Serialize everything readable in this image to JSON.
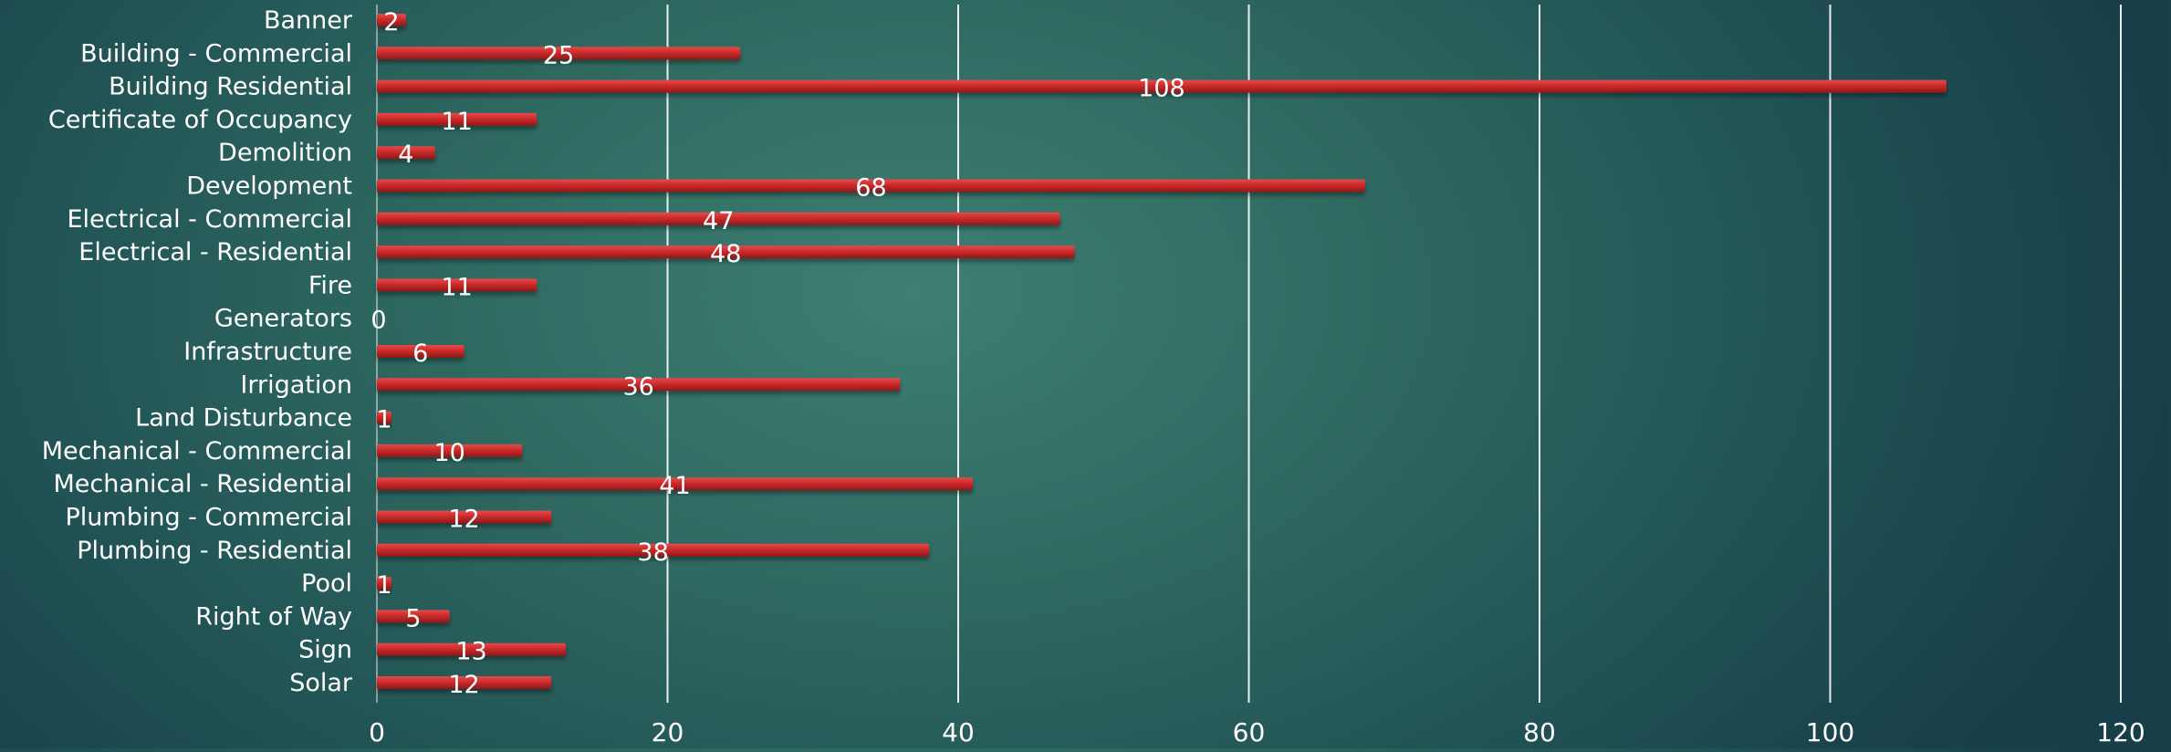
{
  "chart_data": {
    "type": "bar",
    "orientation": "horizontal",
    "title": "",
    "xlabel": "",
    "ylabel": "",
    "categories": [
      "Banner",
      "Building - Commercial",
      "Building Residential",
      "Certificate of Occupancy",
      "Demolition",
      "Development",
      "Electrical - Commercial",
      "Electrical - Residential",
      "Fire",
      "Generators",
      "Infrastructure",
      "Irrigation",
      "Land Disturbance",
      "Mechanical - Commercial",
      "Mechanical - Residential",
      "Plumbing - Commercial",
      "Plumbing - Residential",
      "Pool",
      "Right of Way",
      "Sign",
      "Solar"
    ],
    "values": [
      2,
      25,
      108,
      11,
      4,
      68,
      47,
      48,
      11,
      0,
      6,
      36,
      1,
      10,
      41,
      12,
      38,
      1,
      5,
      13,
      12
    ],
    "xlim": [
      0,
      120
    ],
    "xticks": [
      0,
      20,
      40,
      60,
      80,
      100,
      120
    ],
    "grid": "vertical",
    "legend": "none",
    "data_labels": true,
    "colors": {
      "bar": "#c92a2a",
      "bar_highlight": "#e2494a",
      "bar_shadow": "#8a1616",
      "gridline": "#ffffff",
      "text": "#ffffff"
    }
  }
}
